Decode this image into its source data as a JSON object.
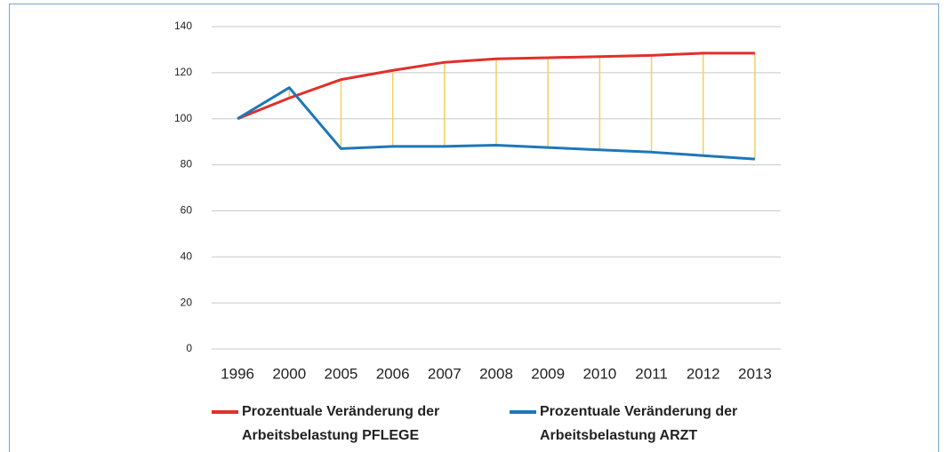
{
  "chart_data": {
    "type": "line",
    "categories": [
      "1996",
      "2000",
      "2005",
      "2006",
      "2007",
      "2008",
      "2009",
      "2010",
      "2011",
      "2012",
      "2013"
    ],
    "series": [
      {
        "name": "Prozentuale Veränderung der Arbeitsbelastung PFLEGE",
        "color": "#e0302a",
        "values": [
          100,
          109,
          117,
          121,
          124.5,
          126,
          126.5,
          127,
          127.5,
          128.5,
          128.5
        ]
      },
      {
        "name": "Prozentuale Veränderung der Arbeitsbelastung ARZT",
        "color": "#1f77b8",
        "values": [
          100,
          113.5,
          87,
          88,
          88,
          88.5,
          87.5,
          86.5,
          85.5,
          84,
          82.5
        ]
      }
    ],
    "ylim": [
      0,
      140
    ],
    "yticks": [
      0,
      20,
      40,
      60,
      80,
      100,
      120,
      140
    ],
    "grid": true,
    "high_low_lines_color": "#f0d060",
    "legend": "bottom"
  }
}
